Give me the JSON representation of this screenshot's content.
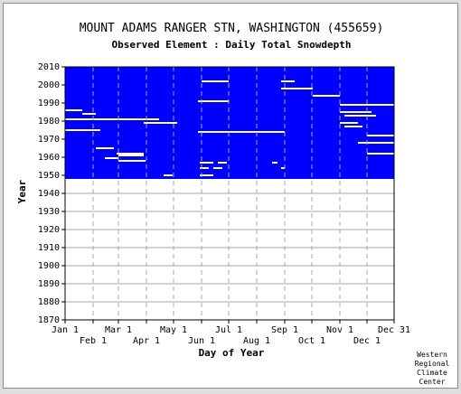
{
  "chart_data": {
    "type": "heatmap",
    "title": "MOUNT ADAMS RANGER STN, WASHINGTON    (455659)",
    "subtitle": "Observed Element : Daily Total Snowdepth",
    "xlabel": "Day of Year",
    "ylabel": "Year",
    "ylim": [
      1870,
      2010
    ],
    "xlim": [
      1,
      365
    ],
    "grid": true,
    "y_ticks": [
      1870,
      1880,
      1890,
      1900,
      1910,
      1920,
      1930,
      1940,
      1950,
      1960,
      1970,
      1980,
      1990,
      2000,
      2010
    ],
    "x_ticks_upper": [
      {
        "label": "Jan 1",
        "day": 1
      },
      {
        "label": "Mar 1",
        "day": 60
      },
      {
        "label": "May 1",
        "day": 121
      },
      {
        "label": "Jul 1",
        "day": 182
      },
      {
        "label": "Sep 1",
        "day": 244
      },
      {
        "label": "Nov 1",
        "day": 305
      },
      {
        "label": "Dec 31",
        "day": 365
      }
    ],
    "x_ticks_lower": [
      {
        "label": "Feb 1",
        "day": 32
      },
      {
        "label": "Apr 1",
        "day": 91
      },
      {
        "label": "Jun 1",
        "day": 152
      },
      {
        "label": "Aug 1",
        "day": 213
      },
      {
        "label": "Oct 1",
        "day": 274
      },
      {
        "label": "Dec 1",
        "day": 335
      }
    ],
    "data_color": "#0000ff",
    "grid_color": "#a8a8a8",
    "data_period": {
      "start_year": 1948,
      "end_year": 2010
    },
    "missing_segments": [
      {
        "year": 1959.5,
        "start_day": 45,
        "end_day": 60
      },
      {
        "year": 1981,
        "start_day": 1,
        "end_day": 105
      },
      {
        "year": 1979,
        "start_day": 88,
        "end_day": 125
      },
      {
        "year": 1986,
        "start_day": 1,
        "end_day": 20
      },
      {
        "year": 1984,
        "start_day": 20,
        "end_day": 35
      },
      {
        "year": 1975,
        "start_day": 1,
        "end_day": 35
      },
      {
        "year": 1965,
        "start_day": 35,
        "end_day": 55
      },
      {
        "year": 1962,
        "start_day": 58,
        "end_day": 88
      },
      {
        "year": 2002,
        "start_day": 152,
        "end_day": 182
      },
      {
        "year": 1991,
        "start_day": 148,
        "end_day": 182
      },
      {
        "year": 1974,
        "start_day": 148,
        "end_day": 244
      },
      {
        "year": 2002,
        "start_day": 240,
        "end_day": 255
      },
      {
        "year": 1998,
        "start_day": 240,
        "end_day": 275
      },
      {
        "year": 1994,
        "start_day": 275,
        "end_day": 305
      },
      {
        "year": 1989,
        "start_day": 305,
        "end_day": 365
      },
      {
        "year": 1985,
        "start_day": 305,
        "end_day": 340
      },
      {
        "year": 1983,
        "start_day": 310,
        "end_day": 345
      },
      {
        "year": 1979,
        "start_day": 305,
        "end_day": 325
      },
      {
        "year": 1977,
        "start_day": 310,
        "end_day": 330
      },
      {
        "year": 1972,
        "start_day": 335,
        "end_day": 365
      },
      {
        "year": 1968,
        "start_day": 325,
        "end_day": 365
      },
      {
        "year": 1962,
        "start_day": 335,
        "end_day": 365
      },
      {
        "year": 1957,
        "start_day": 150,
        "end_day": 165
      },
      {
        "year": 1954,
        "start_day": 150,
        "end_day": 160
      },
      {
        "year": 1950,
        "start_day": 150,
        "end_day": 165
      },
      {
        "year": 1950,
        "start_day": 110,
        "end_day": 120
      },
      {
        "year": 1957,
        "start_day": 170,
        "end_day": 180
      },
      {
        "year": 1954,
        "start_day": 165,
        "end_day": 175
      },
      {
        "year": 1957,
        "start_day": 230,
        "end_day": 236
      },
      {
        "year": 1954,
        "start_day": 240,
        "end_day": 244
      },
      {
        "year": 1958,
        "start_day": 60,
        "end_day": 90
      },
      {
        "year": 1961,
        "start_day": 60,
        "end_day": 88
      },
      {
        "year": 1975,
        "start_day": 22,
        "end_day": 40
      }
    ]
  },
  "credit": [
    "Western",
    "Regional",
    "Climate",
    "Center"
  ]
}
